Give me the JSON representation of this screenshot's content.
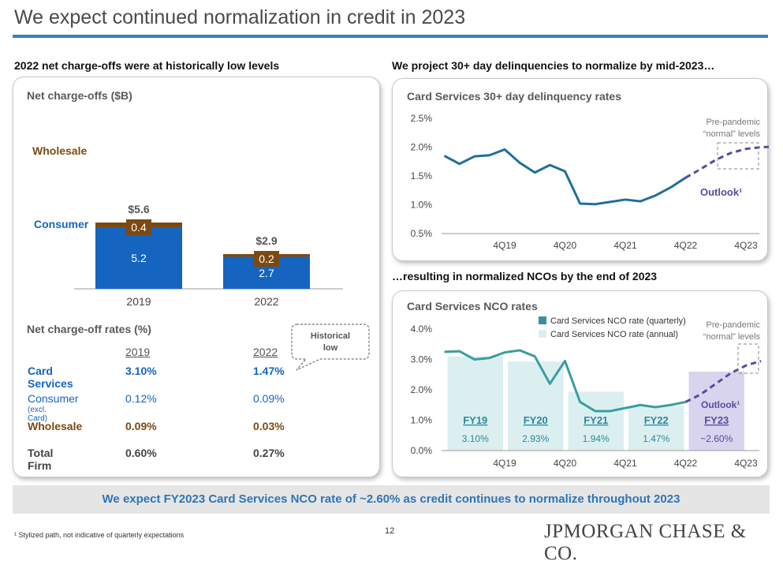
{
  "title": "We expect continued normalization in credit in 2023",
  "left_section": "2022 net charge-offs were at historically low levels",
  "right_top_section": "We project 30+ day delinquencies to normalize by mid-2023…",
  "right_bottom_section": "…resulting in normalized NCOs by the end of 2023",
  "banner": "We expect FY2023 Card Services NCO rate of ~2.60% as credit continues to normalize throughout 2023",
  "footnote": "¹ Stylized path, not indicative of quarterly expectations",
  "page_number": "12",
  "logo": "JPMORGAN CHASE & CO.",
  "colors": {
    "consumer": "#1565c0",
    "wholesale": "#7b4a12",
    "line": "#1f6f9a",
    "outlook": "#5a4b9e",
    "nco_line": "#3a9ea0",
    "annual_bar": "#dceff0",
    "fy23_bar": "#d9d4ee",
    "rule": "#3b7fb8"
  },
  "chart_data": [
    {
      "type": "bar",
      "title": "Net charge-offs ($B)",
      "categories": [
        "2019",
        "2022"
      ],
      "series": [
        {
          "name": "Consumer",
          "values": [
            5.2,
            2.7
          ],
          "labels": [
            "5.2",
            "2.7"
          ]
        },
        {
          "name": "Wholesale",
          "values": [
            0.4,
            0.2
          ],
          "labels": [
            "0.4",
            "0.2"
          ]
        }
      ],
      "totals": [
        "$5.6",
        "$2.9"
      ],
      "ylim": [
        0,
        6.2
      ]
    },
    {
      "type": "line",
      "title": "Card Services 30+ day delinquency rates",
      "y_ticks": [
        "2.5%",
        "2.0%",
        "1.5%",
        "1.0%",
        "0.5%"
      ],
      "ylim": [
        0.5,
        2.5
      ],
      "x_ticks": [
        "4Q19",
        "4Q20",
        "4Q21",
        "4Q22",
        "4Q23"
      ],
      "series": [
        {
          "name": "actual",
          "values": [
            [
              0,
              1.85
            ],
            [
              0.25,
              1.71
            ],
            [
              0.5,
              1.84
            ],
            [
              0.75,
              1.86
            ],
            [
              1,
              1.96
            ],
            [
              1.25,
              1.73
            ],
            [
              1.5,
              1.56
            ],
            [
              1.75,
              1.69
            ],
            [
              2,
              1.58
            ],
            [
              2.25,
              1.02
            ],
            [
              2.5,
              1.01
            ],
            [
              2.75,
              1.05
            ],
            [
              3,
              1.09
            ],
            [
              3.25,
              1.06
            ],
            [
              3.5,
              1.16
            ],
            [
              3.75,
              1.3
            ],
            [
              4,
              1.47
            ]
          ]
        },
        {
          "name": "Outlook¹",
          "values": [
            [
              4,
              1.47
            ],
            [
              4.25,
              1.62
            ],
            [
              4.5,
              1.78
            ],
            [
              4.75,
              1.9
            ],
            [
              5,
              1.97
            ],
            [
              5.25,
              2.0
            ],
            [
              5.5,
              2.01
            ]
          ]
        }
      ],
      "annotations": [
        "Pre-pandemic",
        "“normal” levels",
        "Outlook¹"
      ]
    },
    {
      "type": "bar",
      "title": "Card Services NCO rates",
      "legend": [
        "Card Services NCO rate (quarterly)",
        "Card Services NCO rate (annual)"
      ],
      "y_ticks": [
        "4.0%",
        "3.0%",
        "2.0%",
        "1.0%",
        "0.0%"
      ],
      "ylim": [
        0,
        4
      ],
      "x_ticks": [
        "4Q19",
        "4Q20",
        "4Q21",
        "4Q22",
        "4Q23"
      ],
      "annual": [
        {
          "year": "FY19",
          "value": 3.1,
          "label": "3.10%"
        },
        {
          "year": "FY20",
          "value": 2.93,
          "label": "2.93%"
        },
        {
          "year": "FY21",
          "value": 1.94,
          "label": "1.94%"
        },
        {
          "year": "FY22",
          "value": 1.47,
          "label": "1.47%"
        },
        {
          "year": "FY23",
          "value": 2.6,
          "label": "~2.60%"
        }
      ],
      "quarterly": [
        [
          0,
          3.25
        ],
        [
          0.25,
          3.27
        ],
        [
          0.5,
          3.0
        ],
        [
          0.75,
          3.05
        ],
        [
          1,
          3.23
        ],
        [
          1.25,
          3.3
        ],
        [
          1.5,
          3.1
        ],
        [
          1.75,
          2.2
        ],
        [
          2,
          2.95
        ],
        [
          2.25,
          1.6
        ],
        [
          2.5,
          1.3
        ],
        [
          2.75,
          1.3
        ],
        [
          3,
          1.4
        ],
        [
          3.25,
          1.5
        ],
        [
          3.5,
          1.43
        ],
        [
          3.75,
          1.5
        ],
        [
          4,
          1.6
        ]
      ],
      "outlook": [
        [
          4,
          1.6
        ],
        [
          4.25,
          1.85
        ],
        [
          4.5,
          2.2
        ],
        [
          4.75,
          2.55
        ],
        [
          5,
          2.8
        ],
        [
          5.25,
          2.95
        ]
      ],
      "annotations": [
        "Pre-pandemic",
        "“normal” levels",
        "Outlook¹"
      ]
    }
  ],
  "nco_rates": {
    "title": "Net charge-off rates (%)",
    "years": [
      "2019",
      "2022"
    ],
    "callout": [
      "Historical",
      "low"
    ],
    "rows": [
      {
        "label": "Card Services",
        "sub": "",
        "v2019": "3.10%",
        "v2022": "1.47%"
      },
      {
        "label": "Consumer",
        "sub": "(excl. Card)",
        "v2019": "0.12%",
        "v2022": "0.09%"
      },
      {
        "label": "Wholesale",
        "sub": "",
        "v2019": "0.09%",
        "v2022": "0.03%"
      },
      {
        "label": "Total Firm",
        "sub": "",
        "v2019": "0.60%",
        "v2022": "0.27%"
      }
    ]
  }
}
